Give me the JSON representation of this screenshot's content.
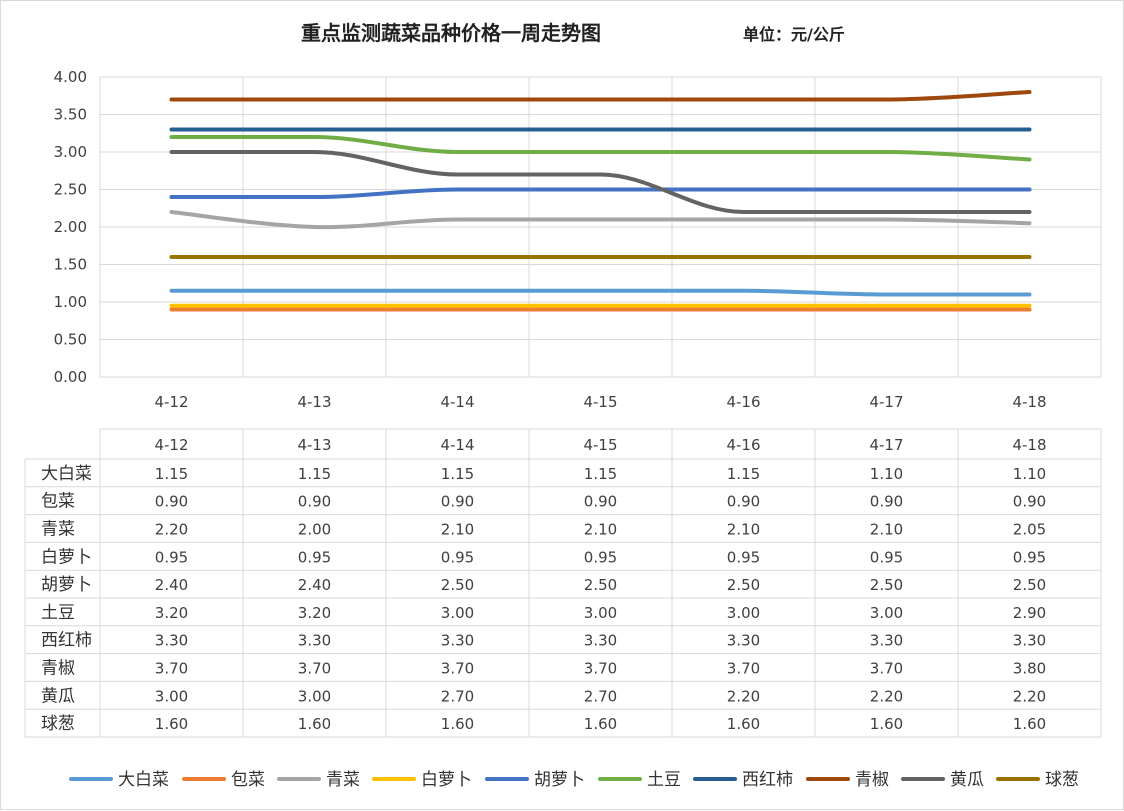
{
  "chart_data": {
    "type": "line",
    "title": "重点监测蔬菜品种价格一周走势图",
    "unit_label": "单位：元/公斤",
    "categories": [
      "4-12",
      "4-13",
      "4-14",
      "4-15",
      "4-16",
      "4-17",
      "4-18"
    ],
    "ylim": [
      0,
      4
    ],
    "yticks": [
      "0.00",
      "0.50",
      "1.00",
      "1.50",
      "2.00",
      "2.50",
      "3.00",
      "3.50",
      "4.00"
    ],
    "grid": true,
    "legend_position": "bottom",
    "series": [
      {
        "name": "大白菜",
        "color": "#5B9BD5",
        "values": [
          1.15,
          1.15,
          1.15,
          1.15,
          1.15,
          1.1,
          1.1
        ],
        "labels": [
          "1.15",
          "1.15",
          "1.15",
          "1.15",
          "1.15",
          "1.10",
          "1.10"
        ]
      },
      {
        "name": "包菜",
        "color": "#ED7D31",
        "values": [
          0.9,
          0.9,
          0.9,
          0.9,
          0.9,
          0.9,
          0.9
        ],
        "labels": [
          "0.90",
          "0.90",
          "0.90",
          "0.90",
          "0.90",
          "0.90",
          "0.90"
        ]
      },
      {
        "name": "青菜",
        "color": "#A5A5A5",
        "values": [
          2.2,
          2.0,
          2.1,
          2.1,
          2.1,
          2.1,
          2.05
        ],
        "labels": [
          "2.20",
          "2.00",
          "2.10",
          "2.10",
          "2.10",
          "2.10",
          "2.05"
        ]
      },
      {
        "name": "白萝卜",
        "color": "#FFC000",
        "values": [
          0.95,
          0.95,
          0.95,
          0.95,
          0.95,
          0.95,
          0.95
        ],
        "labels": [
          "0.95",
          "0.95",
          "0.95",
          "0.95",
          "0.95",
          "0.95",
          "0.95"
        ]
      },
      {
        "name": "胡萝卜",
        "color": "#4472C4",
        "values": [
          2.4,
          2.4,
          2.5,
          2.5,
          2.5,
          2.5,
          2.5
        ],
        "labels": [
          "2.40",
          "2.40",
          "2.50",
          "2.50",
          "2.50",
          "2.50",
          "2.50"
        ]
      },
      {
        "name": "土豆",
        "color": "#70AD47",
        "values": [
          3.2,
          3.2,
          3.0,
          3.0,
          3.0,
          3.0,
          2.9
        ],
        "labels": [
          "3.20",
          "3.20",
          "3.00",
          "3.00",
          "3.00",
          "3.00",
          "2.90"
        ]
      },
      {
        "name": "西红柿",
        "color": "#255E91",
        "values": [
          3.3,
          3.3,
          3.3,
          3.3,
          3.3,
          3.3,
          3.3
        ],
        "labels": [
          "3.30",
          "3.30",
          "3.30",
          "3.30",
          "3.30",
          "3.30",
          "3.30"
        ]
      },
      {
        "name": "青椒",
        "color": "#9E480E",
        "values": [
          3.7,
          3.7,
          3.7,
          3.7,
          3.7,
          3.7,
          3.8
        ],
        "labels": [
          "3.70",
          "3.70",
          "3.70",
          "3.70",
          "3.70",
          "3.70",
          "3.80"
        ]
      },
      {
        "name": "黄瓜",
        "color": "#636363",
        "values": [
          3.0,
          3.0,
          2.7,
          2.7,
          2.2,
          2.2,
          2.2
        ],
        "labels": [
          "3.00",
          "3.00",
          "2.70",
          "2.70",
          "2.20",
          "2.20",
          "2.20"
        ]
      },
      {
        "name": "球葱",
        "color": "#997300",
        "values": [
          1.6,
          1.6,
          1.6,
          1.6,
          1.6,
          1.6,
          1.6
        ],
        "labels": [
          "1.60",
          "1.60",
          "1.60",
          "1.60",
          "1.60",
          "1.60",
          "1.60"
        ]
      }
    ]
  }
}
